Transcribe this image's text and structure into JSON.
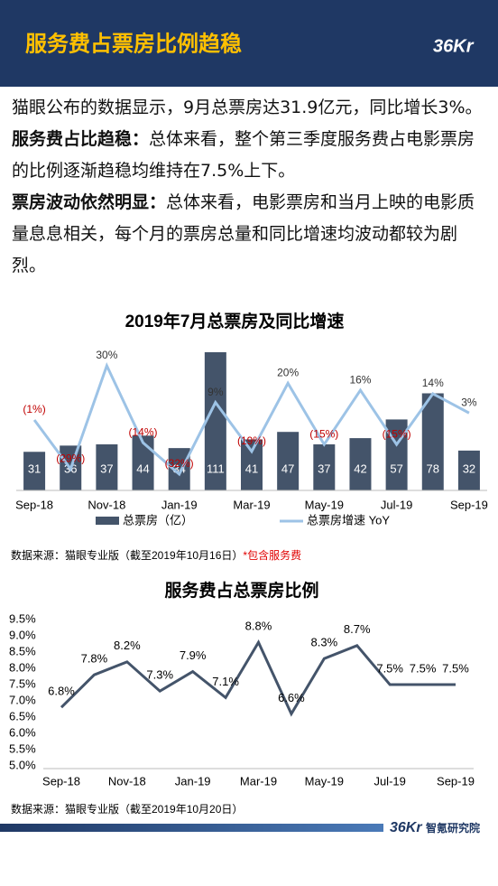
{
  "header": {
    "title": "服务费占票房比例趋稳",
    "logo": "36Kr"
  },
  "paragraphs": [
    {
      "runs": [
        {
          "text": "猫眼公布的数据显示，9月总票房达31.9亿元，同比增长3%。",
          "bold": false
        }
      ]
    },
    {
      "runs": [
        {
          "text": "服务费占比趋稳：",
          "bold": true
        },
        {
          "text": "总体来看，整个第三季度服务费占电影票房的比例逐渐趋稳均维持在7.5%上下。",
          "bold": false
        }
      ]
    },
    {
      "runs": [
        {
          "text": "票房波动依然明显：",
          "bold": true
        },
        {
          "text": "总体来看，电影票房和当月上映的电影质量息息相关，每个月的票房总量和同比增速均波动都较为剧烈。",
          "bold": false
        }
      ]
    }
  ],
  "chart_data": [
    {
      "type": "combo",
      "title": "2019年7月总票房及同比增速",
      "categories": [
        "Sep-18",
        null,
        "Nov-18",
        null,
        "Jan-19",
        null,
        "Mar-19",
        null,
        "May-19",
        null,
        "Jul-19",
        null,
        "Sep-19"
      ],
      "series": [
        {
          "name": "总票房（亿）",
          "color": "#44546a",
          "values": [
            31,
            36,
            37,
            44,
            34,
            111,
            41,
            47,
            37,
            42,
            57,
            78,
            32
          ]
        },
        {
          "name": "总票房增速 YoY",
          "color": "#9dc3e6",
          "axis": "y2",
          "values": [
            -1,
            -29,
            30,
            -14,
            -32,
            9,
            -19,
            20,
            -15,
            16,
            -15,
            14,
            3
          ],
          "value_labels": [
            "(1%)",
            "(29%)",
            "30%",
            "(14%)",
            "(32%)",
            "9%",
            "(19%)",
            "20%",
            "(15%)",
            "16%",
            "(15%)",
            "14%",
            "3%"
          ]
        }
      ],
      "negative_label_color": "#c00000",
      "source": "数据来源：猫眼专业版（截至2019年10月16日）",
      "source_note": "*包含服务费"
    },
    {
      "type": "line",
      "title": "服务费占总票房比例",
      "categories": [
        "Sep-18",
        null,
        "Nov-18",
        null,
        "Jan-19",
        null,
        "Mar-19",
        null,
        "May-19",
        null,
        "Jul-19",
        null,
        "Sep-19"
      ],
      "series": [
        {
          "color": "#44546a",
          "values": [
            6.8,
            7.8,
            8.2,
            7.3,
            7.9,
            7.1,
            8.8,
            6.6,
            8.3,
            8.7,
            7.5,
            7.5,
            7.5
          ],
          "value_labels": [
            "6.8%",
            "7.8%",
            "8.2%",
            "7.3%",
            "7.9%",
            "7.1%",
            "8.8%",
            "6.6%",
            "8.3%",
            "8.7%",
            "7.5%",
            "7.5%",
            "7.5%"
          ]
        }
      ],
      "ylim": [
        5.0,
        9.5
      ],
      "yticks": [
        {
          "value": 5.0,
          "label": "5.0%"
        },
        {
          "value": 5.5,
          "label": "5.5%"
        },
        {
          "value": 6.0,
          "label": "6.0%"
        },
        {
          "value": 6.5,
          "label": "6.5%"
        },
        {
          "value": 7.0,
          "label": "7.0%"
        },
        {
          "value": 7.5,
          "label": "7.5%"
        },
        {
          "value": 8.0,
          "label": "8.0%"
        },
        {
          "value": 8.5,
          "label": "8.5%"
        },
        {
          "value": 9.0,
          "label": "9.0%"
        },
        {
          "value": 9.5,
          "label": "9.5%"
        }
      ],
      "source": "数据来源：猫眼专业版（截至2019年10月20日）"
    }
  ],
  "footer": {
    "logo": "36Kr",
    "text": "智氪研究院"
  }
}
